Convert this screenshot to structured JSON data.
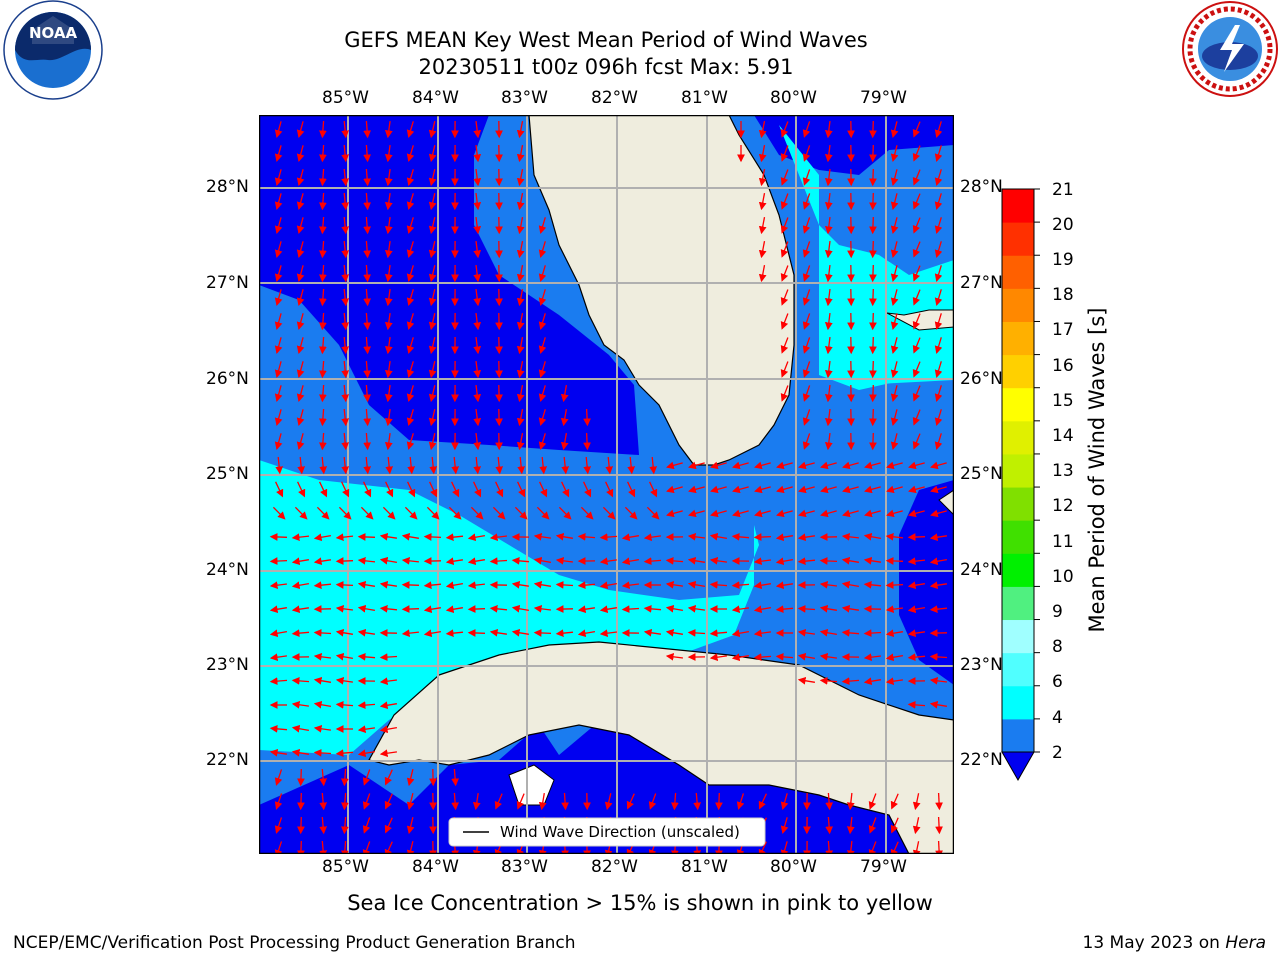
{
  "header": {
    "title_line1": "GEFS MEAN Key West Mean Period of Wind Waves",
    "title_line2": "20230511 t00z 096h fcst   Max: 5.91"
  },
  "logos": {
    "noaa_text": "NOAA",
    "noaa_ring_text": "NATIONAL OCEANIC AND ATMOSPHERIC ADMINISTRATION · U.S. DEPARTMENT OF COMMERCE",
    "nws_ring_text": "NATIONAL WEATHER SERVICE"
  },
  "map": {
    "lon_labels": [
      "85°W",
      "84°W",
      "83°W",
      "82°W",
      "81°W",
      "80°W",
      "79°W"
    ],
    "lat_labels": [
      "28°N",
      "27°N",
      "26°N",
      "25°N",
      "24°N",
      "23°N",
      "22°N"
    ],
    "legend_label": "Wind Wave Direction (unscaled)",
    "colors": {
      "land": "#efedde",
      "level_2_4": "#1a7cf0",
      "level_0_2": "#0000f0",
      "level_4_6": "#00ffff",
      "arrow": "#ff0000",
      "grid": "#b0b0b0"
    }
  },
  "colorbar": {
    "label": "Mean Period of Wind Waves [s]",
    "ticks": [
      "2",
      "4",
      "6",
      "8",
      "9",
      "10",
      "11",
      "12",
      "13",
      "14",
      "15",
      "16",
      "17",
      "18",
      "19",
      "20",
      "21"
    ],
    "colors": [
      "#0000f0",
      "#1a7cf0",
      "#00ffff",
      "#50ffff",
      "#a0ffff",
      "#50f080",
      "#00f000",
      "#40e000",
      "#80e000",
      "#c0f000",
      "#e0f000",
      "#ffff00",
      "#ffd000",
      "#ffb000",
      "#ff8800",
      "#ff6000",
      "#ff3000",
      "#ff0000"
    ]
  },
  "notes": {
    "sea_ice": "Sea Ice Concentration > 15% is shown in pink to yellow",
    "branch": "NCEP/EMC/Verification Post Processing Product Generation Branch",
    "date_prefix": "13 May 2023 on ",
    "machine": "Hera"
  }
}
